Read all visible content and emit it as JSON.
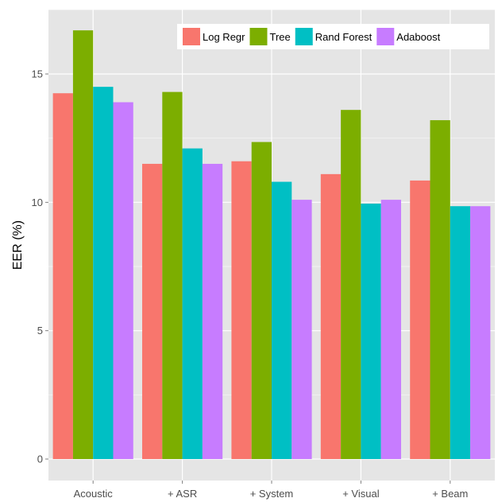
{
  "chart_data": {
    "type": "bar",
    "title": "",
    "xlabel": "",
    "ylabel": "EER (%)",
    "ylim": [
      0,
      17.5
    ],
    "yticks": [
      0,
      5,
      10,
      15
    ],
    "categories": [
      "Acoustic",
      "+ ASR",
      "+ System",
      "+ Visual",
      "+ Beam"
    ],
    "series": [
      {
        "name": "Log Regr",
        "color": "#F8766D",
        "values": [
          14.25,
          11.5,
          11.6,
          11.1,
          10.85
        ]
      },
      {
        "name": "Tree",
        "color": "#7CAE00",
        "values": [
          16.7,
          14.3,
          12.35,
          13.6,
          13.2
        ]
      },
      {
        "name": "Rand Forest",
        "color": "#00BFC4",
        "values": [
          14.5,
          12.1,
          10.8,
          9.95,
          9.85
        ]
      },
      {
        "name": "Adaboost",
        "color": "#C77CFF",
        "values": [
          13.9,
          11.5,
          10.1,
          10.1,
          9.85
        ]
      }
    ],
    "grid": true,
    "legend_position": "top-right",
    "panel_background": "#E5E5E5",
    "grid_color": "#FFFFFF"
  }
}
